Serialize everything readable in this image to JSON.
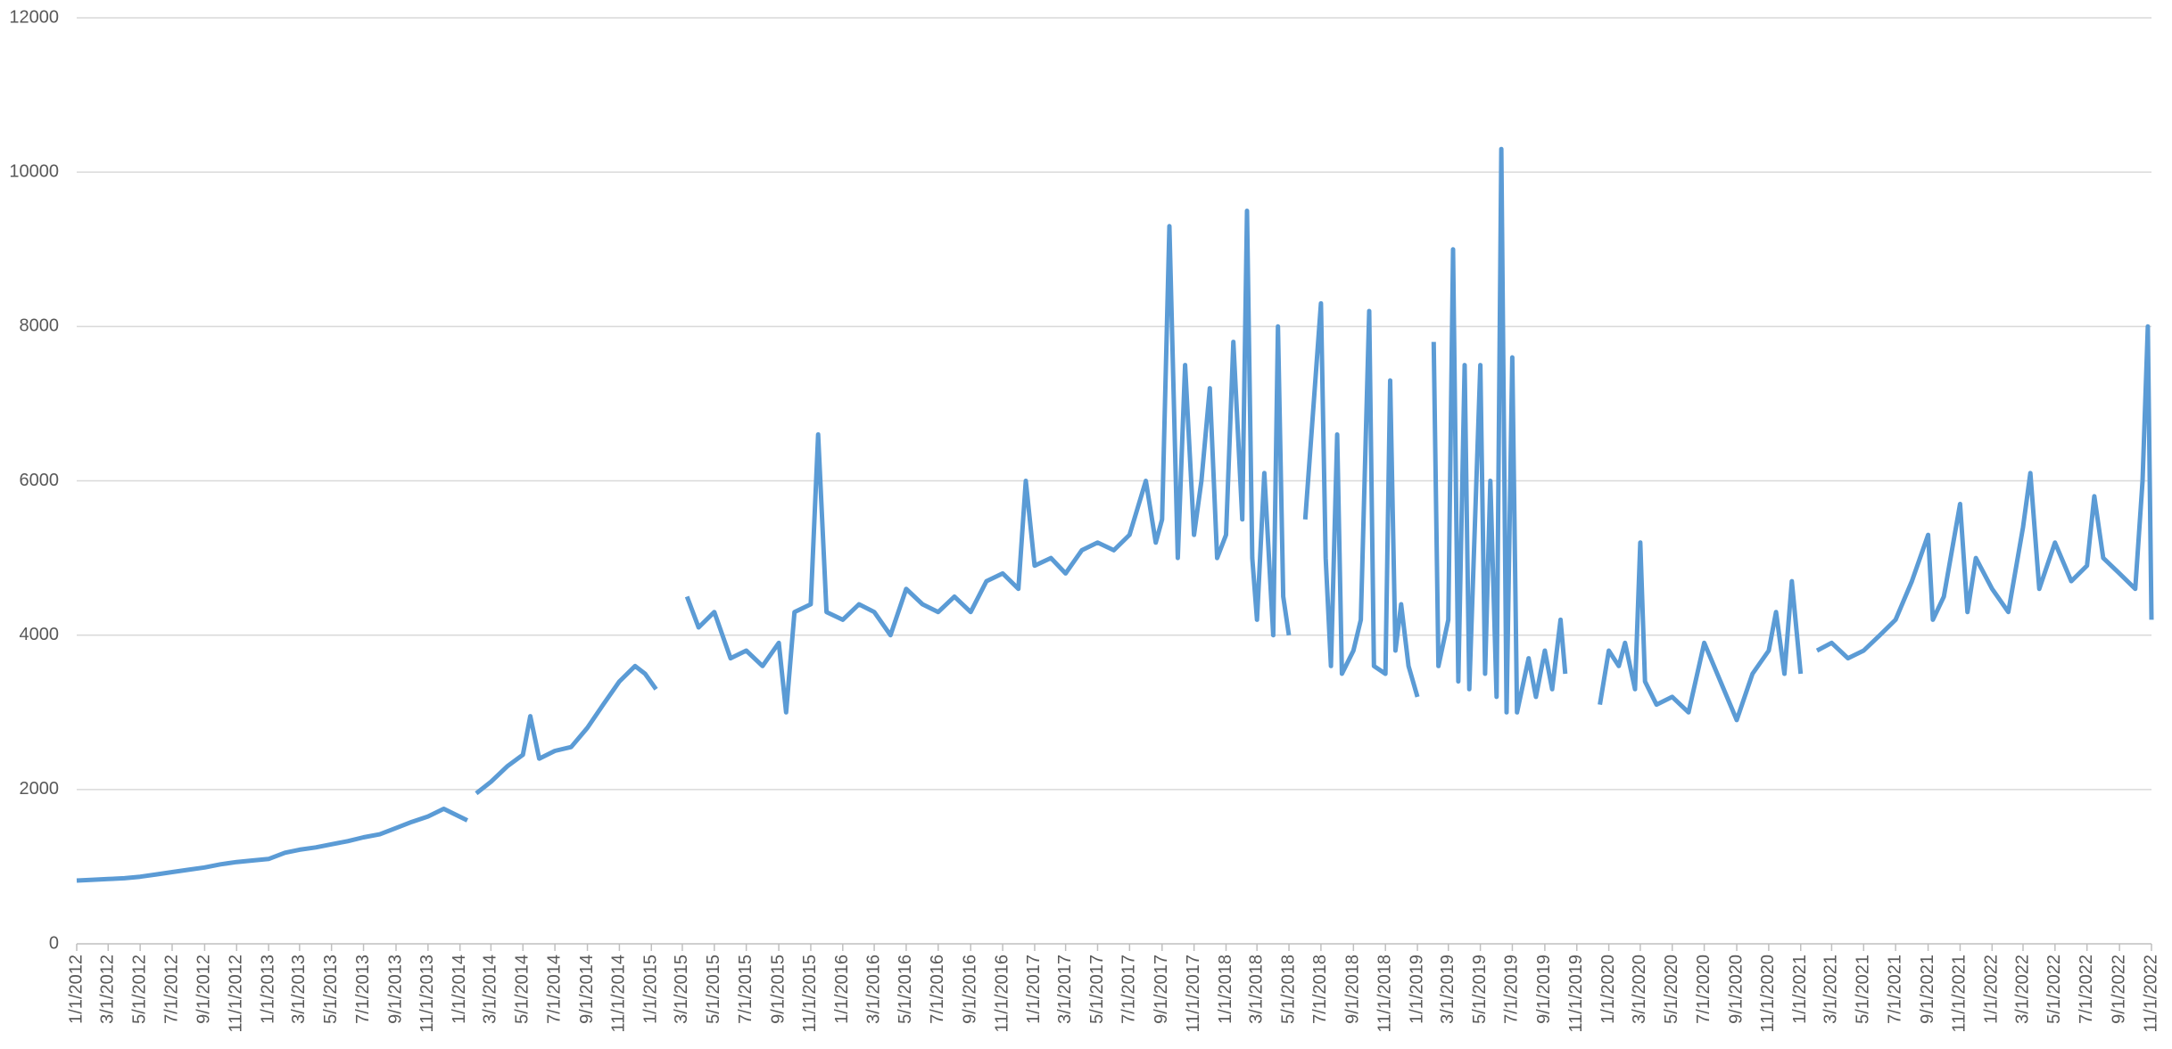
{
  "chart_data": {
    "type": "line",
    "color": "#5b9bd5",
    "grid": true,
    "ylim": [
      0,
      12000
    ],
    "yticks": [
      0,
      2000,
      4000,
      6000,
      8000,
      10000,
      12000
    ],
    "xlim": [
      "1/1/2012",
      "11/1/2022"
    ],
    "xticks": [
      "1/1/2012",
      "3/1/2012",
      "5/1/2012",
      "7/1/2012",
      "9/1/2012",
      "11/1/2012",
      "1/1/2013",
      "3/1/2013",
      "5/1/2013",
      "7/1/2013",
      "9/1/2013",
      "11/1/2013",
      "1/1/2014",
      "3/1/2014",
      "5/1/2014",
      "7/1/2014",
      "9/1/2014",
      "11/1/2014",
      "1/1/2015",
      "3/1/2015",
      "5/1/2015",
      "7/1/2015",
      "9/1/2015",
      "11/1/2015",
      "1/1/2016",
      "3/1/2016",
      "5/1/2016",
      "7/1/2016",
      "9/1/2016",
      "11/1/2016",
      "1/1/2017",
      "3/1/2017",
      "5/1/2017",
      "7/1/2017",
      "9/1/2017",
      "11/1/2017",
      "1/1/2018",
      "3/1/2018",
      "5/1/2018",
      "7/1/2018",
      "9/1/2018",
      "11/1/2018",
      "1/1/2019",
      "3/1/2019",
      "5/1/2019",
      "7/1/2019",
      "9/1/2019",
      "11/1/2019",
      "1/1/2020",
      "3/1/2020",
      "5/1/2020",
      "7/1/2020",
      "9/1/2020",
      "11/1/2020",
      "1/1/2021",
      "3/1/2021",
      "5/1/2021",
      "7/1/2021",
      "9/1/2021",
      "11/1/2021",
      "1/1/2022",
      "3/1/2022",
      "5/1/2022",
      "7/1/2022",
      "9/1/2022",
      "11/1/2022"
    ],
    "x": [
      "1/1/2012",
      "2/1/2012",
      "3/1/2012",
      "4/1/2012",
      "5/1/2012",
      "6/1/2012",
      "7/1/2012",
      "8/1/2012",
      "9/1/2012",
      "10/1/2012",
      "11/1/2012",
      "12/1/2012",
      "1/1/2013",
      "2/1/2013",
      "3/1/2013",
      "4/1/2013",
      "5/1/2013",
      "6/1/2013",
      "7/1/2013",
      "8/1/2013",
      "9/1/2013",
      "10/1/2013",
      "11/1/2013",
      "12/1/2013",
      "1/15/2014",
      "1/25/2014",
      "2/1/2014",
      "3/1/2014",
      "4/1/2014",
      "5/1/2014",
      "5/15/2014",
      "6/1/2014",
      "7/1/2014",
      "8/1/2014",
      "9/1/2014",
      "10/1/2014",
      "11/1/2014",
      "12/1/2014",
      "12/20/2014",
      "1/10/2015",
      "2/1/2015",
      "3/10/2015",
      "4/1/2015",
      "5/1/2015",
      "6/1/2015",
      "7/1/2015",
      "8/1/2015",
      "9/1/2015",
      "9/15/2015",
      "10/1/2015",
      "11/1/2015",
      "11/15/2015",
      "12/1/2015",
      "1/1/2016",
      "2/1/2016",
      "3/1/2016",
      "4/1/2016",
      "5/1/2016",
      "6/1/2016",
      "7/1/2016",
      "8/1/2016",
      "9/1/2016",
      "10/1/2016",
      "11/1/2016",
      "12/1/2016",
      "12/15/2016",
      "1/1/2017",
      "2/1/2017",
      "3/1/2017",
      "4/1/2017",
      "5/1/2017",
      "6/1/2017",
      "7/1/2017",
      "8/1/2017",
      "8/20/2017",
      "9/1/2017",
      "9/15/2017",
      "10/1/2017",
      "10/15/2017",
      "11/1/2017",
      "11/15/2017",
      "12/1/2017",
      "12/15/2017",
      "1/1/2018",
      "1/15/2018",
      "2/1/2018",
      "2/10/2018",
      "2/20/2018",
      "3/1/2018",
      "3/15/2018",
      "4/1/2018",
      "4/10/2018",
      "4/20/2018",
      "5/1/2018",
      "5/10/2018",
      "6/1/2018",
      "7/1/2018",
      "7/10/2018",
      "7/20/2018",
      "8/1/2018",
      "8/10/2018",
      "9/1/2018",
      "9/15/2018",
      "10/1/2018",
      "10/10/2018",
      "11/1/2018",
      "11/10/2018",
      "11/20/2018",
      "12/1/2018",
      "12/15/2018",
      "1/1/2019",
      "1/15/2019",
      "2/1/2019",
      "2/10/2019",
      "3/1/2019",
      "3/10/2019",
      "3/20/2019",
      "4/1/2019",
      "4/10/2019",
      "5/1/2019",
      "5/10/2019",
      "5/20/2019",
      "6/1/2019",
      "6/10/2019",
      "6/20/2019",
      "7/1/2019",
      "7/10/2019",
      "8/1/2019",
      "8/15/2019",
      "9/1/2019",
      "9/15/2019",
      "10/1/2019",
      "10/10/2019",
      "10/20/2019",
      "12/15/2019",
      "1/1/2020",
      "1/20/2020",
      "2/1/2020",
      "2/20/2020",
      "3/1/2020",
      "3/10/2020",
      "4/1/2020",
      "5/1/2020",
      "6/1/2020",
      "7/1/2020",
      "8/1/2020",
      "9/1/2020",
      "10/1/2020",
      "11/1/2020",
      "11/15/2020",
      "12/1/2020",
      "12/15/2020",
      "1/1/2021",
      "1/15/2021",
      "2/1/2021",
      "3/1/2021",
      "4/1/2021",
      "5/1/2021",
      "6/1/2021",
      "7/1/2021",
      "8/1/2021",
      "9/1/2021",
      "9/10/2021",
      "10/1/2021",
      "11/1/2021",
      "11/15/2021",
      "12/1/2021",
      "1/1/2022",
      "2/1/2022",
      "3/1/2022",
      "3/15/2022",
      "4/1/2022",
      "5/1/2022",
      "6/1/2022",
      "7/1/2022",
      "7/15/2022",
      "8/1/2022",
      "9/1/2022",
      "10/1/2022",
      "10/15/2022",
      "10/25/2022",
      "11/1/2022"
    ],
    "values": [
      820,
      830,
      840,
      850,
      870,
      900,
      930,
      960,
      990,
      1030,
      1060,
      1080,
      1100,
      1180,
      1220,
      1250,
      1290,
      1330,
      1380,
      1420,
      1500,
      1580,
      1650,
      1750,
      1600,
      null,
      1950,
      2100,
      2300,
      2450,
      2950,
      2400,
      2500,
      2550,
      2800,
      3100,
      3400,
      3600,
      3500,
      3300,
      null,
      4500,
      4100,
      4300,
      3700,
      3800,
      3600,
      3900,
      3000,
      4300,
      4400,
      6600,
      4300,
      4200,
      4400,
      4300,
      4000,
      4600,
      4400,
      4300,
      4500,
      4300,
      4700,
      4800,
      4600,
      6000,
      4900,
      5000,
      4800,
      5100,
      5200,
      5100,
      5300,
      6000,
      5200,
      5500,
      9300,
      5000,
      7500,
      5300,
      6000,
      7200,
      5000,
      5300,
      7800,
      5500,
      9500,
      5000,
      4200,
      6100,
      4000,
      8000,
      4500,
      4000,
      null,
      5500,
      8300,
      5000,
      3600,
      6600,
      3500,
      3800,
      4200,
      8200,
      3600,
      3500,
      7300,
      3800,
      4400,
      3600,
      3200,
      null,
      7800,
      3600,
      4200,
      9000,
      3400,
      7500,
      3300,
      7500,
      3500,
      6000,
      3200,
      10300,
      3000,
      7600,
      3000,
      3700,
      3200,
      3800,
      3300,
      4200,
      3500,
      null,
      3100,
      3800,
      3600,
      3900,
      3300,
      5200,
      3400,
      3100,
      3200,
      3000,
      3900,
      3400,
      2900,
      3500,
      3800,
      4300,
      3500,
      4700,
      3500,
      null,
      3800,
      3900,
      3700,
      3800,
      4000,
      4200,
      4700,
      5300,
      4200,
      4500,
      5700,
      4300,
      5000,
      4600,
      4300,
      5400,
      6100,
      4600,
      5200,
      4700,
      4900,
      5800,
      5000,
      4800,
      4600,
      6000,
      8000,
      4200
    ]
  }
}
